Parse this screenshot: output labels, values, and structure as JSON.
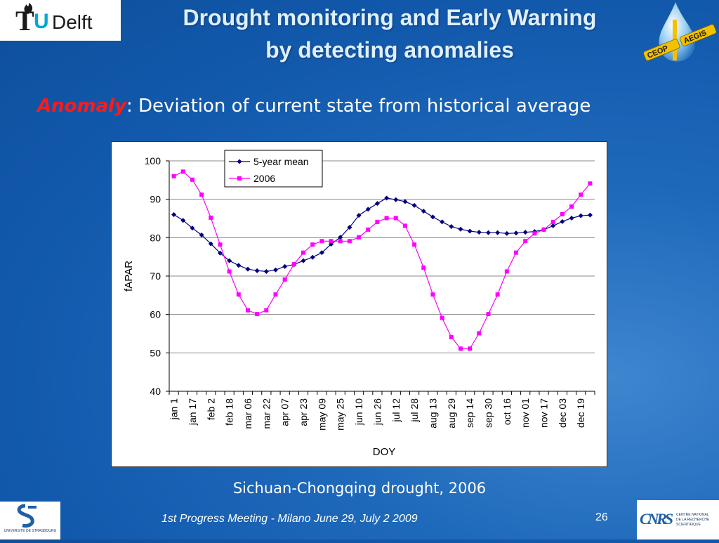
{
  "logos": {
    "tudelft": {
      "t": "T",
      "u": "U",
      "delft": "Delft"
    },
    "ceop": {
      "left_text": "CEOP",
      "right_text": "AEGIS"
    },
    "strasbourg": {
      "text": "UNIVERSITÉ DE STRASBOURG"
    },
    "cnrs": {
      "mark": "CNRS",
      "line1": "CENTRE NATIONAL",
      "line2": "DE LA RECHERCHE",
      "line3": "SCIENTIFIQUE"
    }
  },
  "title": {
    "line1": "Drought monitoring and Early Warning",
    "line2": "by detecting anomalies"
  },
  "subtitle": {
    "keyword": "Anomaly",
    "text": ": Deviation of current state from historical average"
  },
  "caption": "Sichuan-Chongqing drought, 2006",
  "footer": {
    "text": "1st Progress Meeting  - Milano June 29, July 2 2009",
    "page": "26"
  },
  "colors": {
    "mean": "#000080",
    "y2006": "#ff00ff",
    "keyword": "#ff1a1a"
  },
  "chart_data": {
    "type": "line",
    "xlabel": "DOY",
    "ylabel": "fAPAR",
    "ylim": [
      40,
      100
    ],
    "yticks": [
      40,
      50,
      60,
      70,
      80,
      90,
      100
    ],
    "legend": "top-left",
    "x_tick_labels": [
      "jan 1",
      "jan 17",
      "feb 2",
      "feb 18",
      "mar 06",
      "mar 22",
      "apr 07",
      "apr 23",
      "may 09",
      "may 25",
      "jun 10",
      "jun 26",
      "jul 12",
      "jul 28",
      "aug 13",
      "aug 29",
      "sep 14",
      "sep 30",
      "oct 16",
      "nov 01",
      "nov 17",
      "dec 03",
      "dec 19"
    ],
    "series": [
      {
        "name": "5-year mean",
        "marker": "diamond",
        "values": [
          86,
          84.5,
          82.5,
          80.7,
          78.4,
          76,
          74,
          72.8,
          71.8,
          71.4,
          71.2,
          71.6,
          72.5,
          73,
          74,
          74.9,
          76.1,
          78.3,
          80.1,
          82.7,
          85.8,
          87.4,
          88.9,
          90.3,
          89.9,
          89.4,
          88.4,
          86.9,
          85.4,
          84.1,
          82.9,
          82.2,
          81.7,
          81.4,
          81.3,
          81.3,
          81.1,
          81.2,
          81.4,
          81.6,
          82.1,
          83.1,
          84.2,
          85.1,
          85.7,
          85.9
        ]
      },
      {
        "name": "2006",
        "marker": "square",
        "values": [
          96,
          97.2,
          95.1,
          91.2,
          85.2,
          78.2,
          71.2,
          65.2,
          61.1,
          60.1,
          61.1,
          65.2,
          69.1,
          73.1,
          76.1,
          78.2,
          79.1,
          79.1,
          79.1,
          79.1,
          80.1,
          82.1,
          84.1,
          85.1,
          85.1,
          83.1,
          78.2,
          72.2,
          65.2,
          59.1,
          54.1,
          51.1,
          51.1,
          55.1,
          60.1,
          65.2,
          71.2,
          76.1,
          79.1,
          81.1,
          82.1,
          84.1,
          86.1,
          88.1,
          91.2,
          94.1
        ]
      }
    ]
  }
}
